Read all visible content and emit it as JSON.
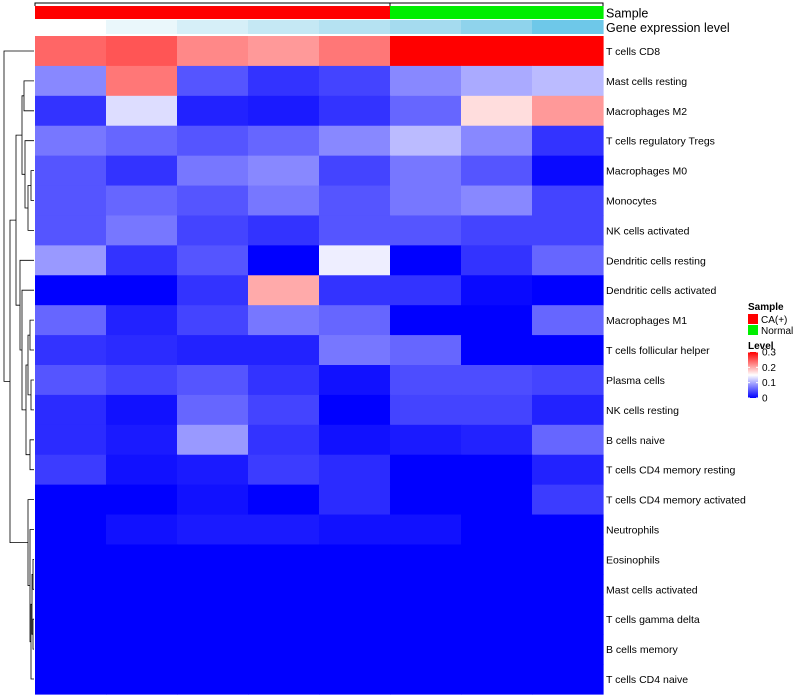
{
  "chart_data": {
    "type": "heatmap",
    "annotation_rows": [
      "Sample",
      "Gene expression level"
    ],
    "row_labels": [
      "T cells CD8",
      "Mast cells resting",
      "Macrophages M2",
      "T cells regulatory  Tregs",
      "Macrophages M0",
      "Monocytes",
      "NK cells activated",
      "Dendritic cells resting",
      "Dendritic cells activated",
      "Macrophages M1",
      "T cells follicular helper",
      "Plasma cells",
      "NK cells resting",
      "B cells naive",
      "T cells CD4 memory resting",
      "T cells CD4 memory activated",
      "Neutrophils",
      "Eosinophils",
      "Mast cells activated",
      "T cells gamma delta",
      "B cells memory",
      "T cells CD4 naive"
    ],
    "sample_groups": [
      "CA(+)",
      "CA(+)",
      "CA(+)",
      "CA(+)",
      "CA(+)",
      "Normal",
      "Normal",
      "Normal"
    ],
    "gene_expression_colors": [
      "#ffffff",
      "#eaf7fb",
      "#d6eff8",
      "#c5e8f4",
      "#b5e2f2",
      "#a5dbef",
      "#8fd3ec",
      "#6ec8e9"
    ],
    "values": [
      [
        0.24,
        0.25,
        0.22,
        0.21,
        0.23,
        0.3,
        0.3,
        0.3
      ],
      [
        0.08,
        0.23,
        0.05,
        0.03,
        0.04,
        0.08,
        0.1,
        0.11
      ],
      [
        0.03,
        0.13,
        0.02,
        0.015,
        0.03,
        0.06,
        0.17,
        0.21
      ],
      [
        0.07,
        0.06,
        0.05,
        0.06,
        0.08,
        0.11,
        0.08,
        0.03
      ],
      [
        0.05,
        0.03,
        0.07,
        0.08,
        0.04,
        0.07,
        0.05,
        0.005
      ],
      [
        0.05,
        0.06,
        0.05,
        0.07,
        0.05,
        0.07,
        0.08,
        0.04
      ],
      [
        0.05,
        0.07,
        0.04,
        0.03,
        0.05,
        0.05,
        0.04,
        0.04
      ],
      [
        0.09,
        0.03,
        0.05,
        0.0,
        0.14,
        0.0,
        0.03,
        0.06
      ],
      [
        0.0,
        0.0,
        0.03,
        0.2,
        0.03,
        0.03,
        0.005,
        0.0
      ],
      [
        0.06,
        0.02,
        0.04,
        0.07,
        0.06,
        0.0,
        0.0,
        0.06
      ],
      [
        0.03,
        0.025,
        0.02,
        0.02,
        0.07,
        0.06,
        0.0,
        0.0
      ],
      [
        0.05,
        0.04,
        0.05,
        0.03,
        0.01,
        0.045,
        0.045,
        0.04
      ],
      [
        0.025,
        0.01,
        0.06,
        0.04,
        0.0,
        0.04,
        0.04,
        0.02
      ],
      [
        0.025,
        0.015,
        0.09,
        0.03,
        0.01,
        0.015,
        0.02,
        0.06
      ],
      [
        0.035,
        0.01,
        0.015,
        0.035,
        0.025,
        0.0,
        0.0,
        0.02
      ],
      [
        0.0,
        0.0,
        0.01,
        0.0,
        0.025,
        0.0,
        0.0,
        0.035
      ],
      [
        0.0,
        0.01,
        0.015,
        0.015,
        0.01,
        0.01,
        0.0,
        0.0
      ],
      [
        0.0,
        0.0,
        0.0,
        0.0,
        0.0,
        0.0,
        0.0,
        0.0
      ],
      [
        0.0,
        0.0,
        0.0,
        0.0,
        0.0,
        0.0,
        0.0,
        0.0
      ],
      [
        0.0,
        0.0,
        0.0,
        0.0,
        0.0,
        0.0,
        0.0,
        0.0
      ],
      [
        0.0,
        0.0,
        0.0,
        0.0,
        0.0,
        0.0,
        0.0,
        0.0
      ],
      [
        0.0,
        0.0,
        0.0,
        0.0,
        0.0,
        0.0,
        0.0,
        0.0
      ]
    ],
    "color_scale": {
      "min": 0,
      "mid": 0.15,
      "max": 0.3,
      "low_color": "#0000ff",
      "mid_color": "#ffffff",
      "high_color": "#ff0000"
    },
    "legend": {
      "sample_title": "Sample",
      "sample_entries": [
        {
          "label": "CA(+)",
          "color": "#ff0000"
        },
        {
          "label": "Normal",
          "color": "#00ee00"
        }
      ],
      "level_title": "Level",
      "level_ticks": [
        "0.3",
        "0.2",
        "0.1",
        "0"
      ],
      "level_tick_values": [
        0.3,
        0.2,
        0.1,
        0
      ]
    },
    "grid": false,
    "row_dendrogram": true,
    "column_dendrogram": true
  }
}
